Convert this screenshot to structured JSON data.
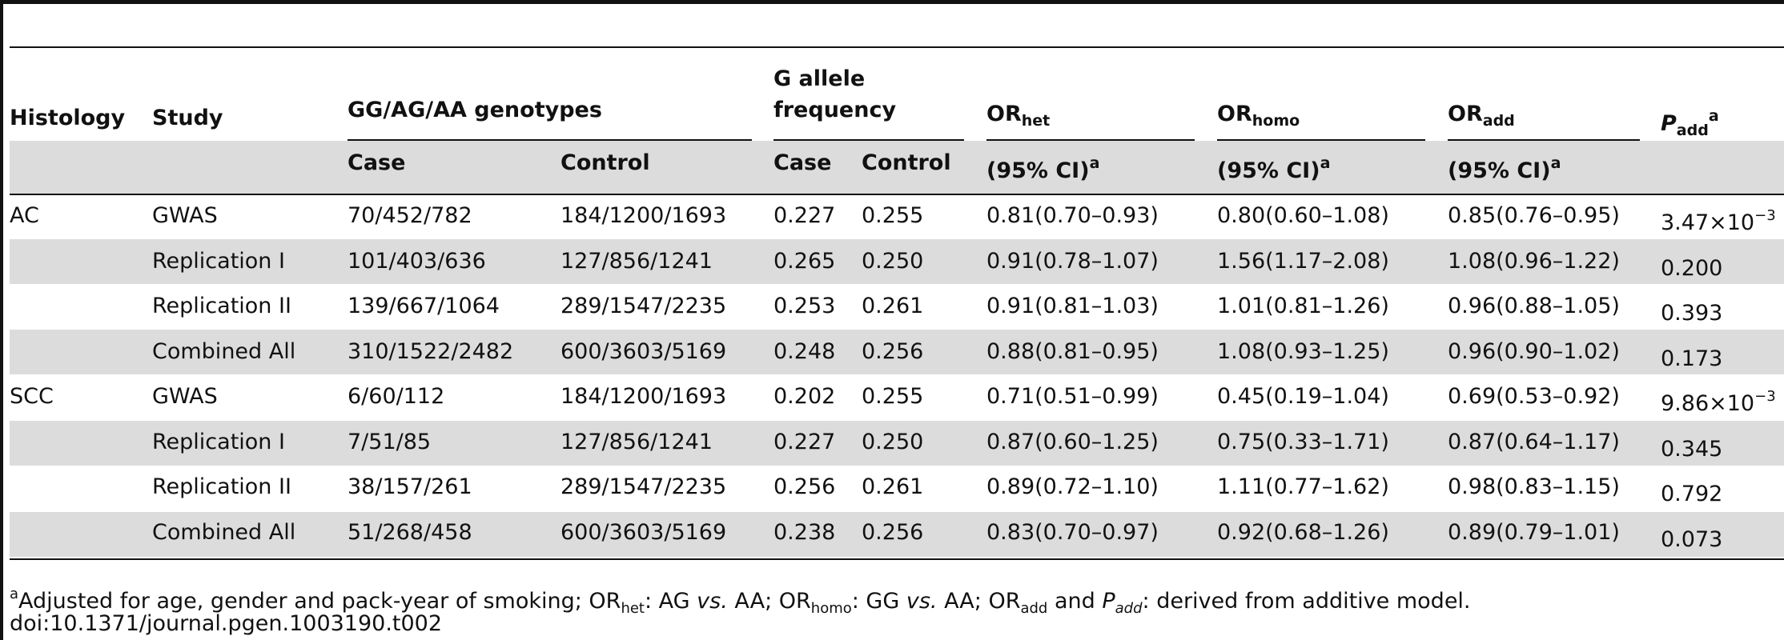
{
  "headers": {
    "histology": "Histology",
    "study": "Study",
    "genotypes": "GG/AG/AA genotypes",
    "allele_line1": "G allele",
    "allele_line2": "frequency",
    "or_het_base": "OR",
    "or_het_sub": "het",
    "or_homo_base": "OR",
    "or_homo_sub": "homo",
    "or_add_base": "OR",
    "or_add_sub": "add",
    "p_add_base": "P",
    "p_add_sub": "add",
    "p_add_sup": "a",
    "case": "Case",
    "control": "Control",
    "allele_case": "Case",
    "allele_control": "Control",
    "ci_het": "(95% CI)",
    "ci_homo": "(95% CI)",
    "ci_add": "(95% CI)",
    "ci_sup": "a"
  },
  "rows": [
    {
      "histology": "AC",
      "study": "GWAS",
      "case": "70/452/782",
      "control": "184/1200/1693",
      "af_case": "0.227",
      "af_control": "0.255",
      "or_het": "0.81(0.70–0.93)",
      "or_homo": "0.80(0.60–1.08)",
      "or_add": "0.85(0.76–0.95)",
      "p_add": "3.47×10",
      "p_exp": "−3"
    },
    {
      "histology": "",
      "study": "Replication I",
      "case": "101/403/636",
      "control": "127/856/1241",
      "af_case": "0.265",
      "af_control": "0.250",
      "or_het": "0.91(0.78–1.07)",
      "or_homo": "1.56(1.17–2.08)",
      "or_add": "1.08(0.96–1.22)",
      "p_add": "0.200",
      "p_exp": ""
    },
    {
      "histology": "",
      "study": "Replication II",
      "case": "139/667/1064",
      "control": "289/1547/2235",
      "af_case": "0.253",
      "af_control": "0.261",
      "or_het": "0.91(0.81–1.03)",
      "or_homo": "1.01(0.81–1.26)",
      "or_add": "0.96(0.88–1.05)",
      "p_add": "0.393",
      "p_exp": ""
    },
    {
      "histology": "",
      "study": "Combined All",
      "case": "310/1522/2482",
      "control": "600/3603/5169",
      "af_case": "0.248",
      "af_control": "0.256",
      "or_het": "0.88(0.81–0.95)",
      "or_homo": "1.08(0.93–1.25)",
      "or_add": "0.96(0.90–1.02)",
      "p_add": "0.173",
      "p_exp": ""
    },
    {
      "histology": "SCC",
      "study": "GWAS",
      "case": "6/60/112",
      "control": "184/1200/1693",
      "af_case": "0.202",
      "af_control": "0.255",
      "or_het": "0.71(0.51–0.99)",
      "or_homo": "0.45(0.19–1.04)",
      "or_add": "0.69(0.53–0.92)",
      "p_add": "9.86×10",
      "p_exp": "−3"
    },
    {
      "histology": "",
      "study": "Replication I",
      "case": "7/51/85",
      "control": "127/856/1241",
      "af_case": "0.227",
      "af_control": "0.250",
      "or_het": "0.87(0.60–1.25)",
      "or_homo": "0.75(0.33–1.71)",
      "or_add": "0.87(0.64–1.17)",
      "p_add": "0.345",
      "p_exp": ""
    },
    {
      "histology": "",
      "study": "Replication II",
      "case": "38/157/261",
      "control": "289/1547/2235",
      "af_case": "0.256",
      "af_control": "0.261",
      "or_het": "0.89(0.72–1.10)",
      "or_homo": "1.11(0.77–1.62)",
      "or_add": "0.98(0.83–1.15)",
      "p_add": "0.792",
      "p_exp": ""
    },
    {
      "histology": "",
      "study": "Combined All",
      "case": "51/268/458",
      "control": "600/3603/5169",
      "af_case": "0.238",
      "af_control": "0.256",
      "or_het": "0.83(0.70–0.97)",
      "or_homo": "0.92(0.68–1.26)",
      "or_add": "0.89(0.79–1.01)",
      "p_add": "0.073",
      "p_exp": ""
    }
  ],
  "footnote": {
    "sup": "a",
    "t1": "Adjusted for age, gender and pack-year of smoking; OR",
    "s1": "het",
    "t2": ": AG ",
    "i1": "vs.",
    "t3": " AA; OR",
    "s2": "homo",
    "t4": ": GG ",
    "i2": "vs.",
    "t5": " AA; OR",
    "s3": "add",
    "t6": " and ",
    "i3": "P",
    "s4": "add",
    "t7": ": derived from additive model."
  },
  "doi": "doi:10.1371/journal.pgen.1003190.t002"
}
